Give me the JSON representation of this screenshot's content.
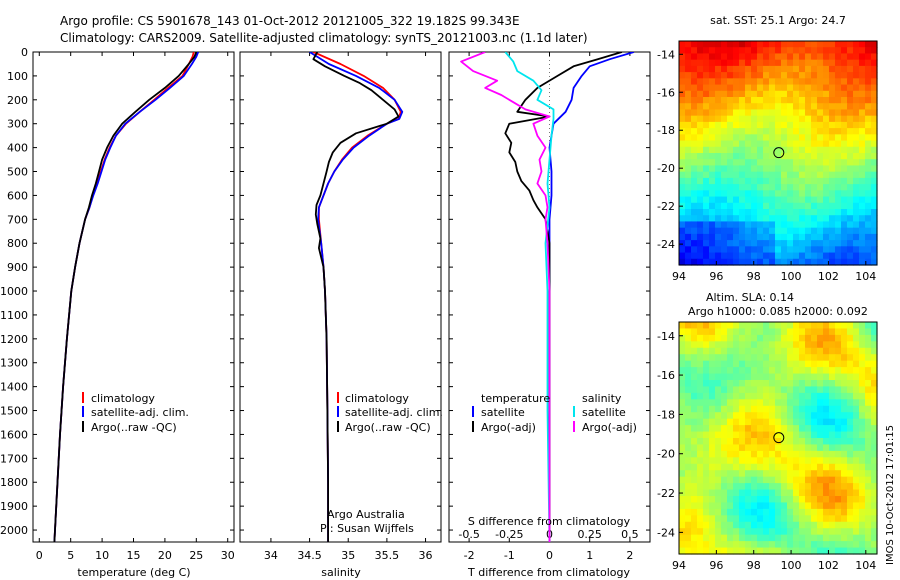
{
  "header": {
    "line1": "Argo profile: CS 5901678_143 01-Oct-2012 20121005_322 19.182S 99.343E",
    "line2": "Climatology: CARS2009. Satellite-adjusted climatology: synTS_20121003.nc (1.1d later)"
  },
  "colors": {
    "climatology": "#ff0000",
    "satellite": "#0000ff",
    "argo": "#000000",
    "s_satellite": "#00e5ee",
    "s_argo": "#ff00ff"
  },
  "depth_axis": {
    "ylim": [
      0,
      2050
    ],
    "ticks": [
      "0",
      "100",
      "200",
      "300",
      "400",
      "500",
      "600",
      "700",
      "800",
      "900",
      "1000",
      "1100",
      "1200",
      "1300",
      "1400",
      "1500",
      "1600",
      "1700",
      "1800",
      "1900",
      "2000"
    ]
  },
  "chart_data": [
    {
      "id": "temperature",
      "type": "line",
      "xlabel": "temperature (deg C)",
      "xlim": [
        -1,
        31
      ],
      "xticks": [
        "0",
        "5",
        "10",
        "15",
        "20",
        "25",
        "30"
      ],
      "xtick_values": [
        0,
        5,
        10,
        15,
        20,
        25,
        30
      ],
      "legend": [
        "climatology",
        "satellite-adj. clim.",
        "Argo(..raw -QC)"
      ],
      "series": [
        {
          "name": "climatology",
          "color": "#ff0000",
          "depth": [
            0,
            20,
            50,
            100,
            150,
            200,
            250,
            300,
            350,
            400,
            450,
            500,
            550,
            600,
            650,
            700,
            800,
            900,
            1000,
            1200,
            1400,
            1600,
            1800,
            2000,
            2050
          ],
          "values": [
            24.6,
            24.4,
            23.8,
            22.8,
            20.5,
            18.3,
            16.0,
            13.8,
            12.2,
            11.2,
            10.4,
            9.8,
            9.2,
            8.5,
            8.0,
            7.3,
            6.4,
            5.7,
            5.1,
            4.4,
            3.8,
            3.3,
            2.9,
            2.5,
            2.4
          ]
        },
        {
          "name": "satellite-adj. clim.",
          "color": "#0000ff",
          "depth": [
            0,
            20,
            50,
            100,
            150,
            200,
            250,
            300,
            350,
            400,
            450,
            500,
            550,
            600,
            650,
            700,
            800,
            900,
            1000,
            1200,
            1400,
            1600,
            1800,
            2000,
            2050
          ],
          "values": [
            25.3,
            25.0,
            24.3,
            23.0,
            20.8,
            18.5,
            16.0,
            13.7,
            12.2,
            11.3,
            10.5,
            9.9,
            9.3,
            8.6,
            8.0,
            7.3,
            6.4,
            5.7,
            5.1,
            4.4,
            3.8,
            3.3,
            2.9,
            2.5,
            2.4
          ]
        },
        {
          "name": "Argo(..raw -QC)",
          "color": "#000000",
          "depth": [
            0,
            20,
            50,
            100,
            150,
            200,
            250,
            300,
            350,
            400,
            450,
            500,
            550,
            600,
            650,
            700,
            800,
            900,
            1000,
            1200,
            1400,
            1600,
            1800,
            2000,
            2050
          ],
          "values": [
            25.0,
            24.7,
            23.8,
            22.2,
            20.0,
            17.5,
            15.3,
            13.2,
            11.8,
            10.8,
            10.0,
            9.5,
            9.0,
            8.4,
            7.9,
            7.3,
            6.4,
            5.7,
            5.1,
            4.4,
            3.8,
            3.3,
            2.9,
            2.5,
            2.4
          ]
        }
      ]
    },
    {
      "id": "salinity",
      "type": "line",
      "xlabel": "salinity",
      "xlim": [
        33.6,
        36.2
      ],
      "xticks": [
        "34",
        "34.5",
        "35",
        "35.5",
        "36"
      ],
      "xtick_values": [
        34,
        34.5,
        35,
        35.5,
        36
      ],
      "legend": [
        "climatology",
        "satellite-adj. clim.",
        "Argo(..raw -QC)"
      ],
      "annotation": [
        "Argo Australia",
        "PI: Susan Wijffels"
      ],
      "series": [
        {
          "name": "climatology",
          "color": "#ff0000",
          "depth": [
            0,
            50,
            100,
            150,
            200,
            250,
            280,
            300,
            350,
            400,
            450,
            500,
            550,
            600,
            650,
            700,
            800,
            900,
            1000,
            1200,
            1500,
            1800,
            2050
          ],
          "values": [
            34.55,
            34.9,
            35.2,
            35.45,
            35.6,
            35.68,
            35.65,
            35.5,
            35.25,
            35.05,
            34.92,
            34.82,
            34.74,
            34.68,
            34.62,
            34.62,
            34.65,
            34.68,
            34.7,
            34.72,
            34.73,
            34.74,
            34.74
          ]
        },
        {
          "name": "satellite-adj. clim.",
          "color": "#0000ff",
          "depth": [
            0,
            50,
            100,
            150,
            200,
            250,
            280,
            300,
            350,
            400,
            450,
            500,
            550,
            600,
            650,
            700,
            800,
            900,
            1000,
            1200,
            1500,
            1800,
            2050
          ],
          "values": [
            34.5,
            34.75,
            35.1,
            35.4,
            35.6,
            35.7,
            35.66,
            35.5,
            35.27,
            35.07,
            34.93,
            34.82,
            34.74,
            34.68,
            34.62,
            34.61,
            34.65,
            34.68,
            34.7,
            34.72,
            34.73,
            34.74,
            34.74
          ]
        },
        {
          "name": "Argo(..raw -QC)",
          "color": "#000000",
          "depth": [
            0,
            30,
            60,
            100,
            130,
            160,
            200,
            240,
            270,
            300,
            340,
            380,
            420,
            460,
            500,
            550,
            600,
            640,
            680,
            720,
            780,
            820,
            900,
            1000,
            1200,
            1500,
            1800,
            2050
          ],
          "values": [
            34.6,
            34.55,
            34.7,
            34.95,
            35.15,
            35.3,
            35.45,
            35.6,
            35.65,
            35.5,
            35.1,
            34.9,
            34.8,
            34.75,
            34.72,
            34.68,
            34.64,
            34.59,
            34.58,
            34.6,
            34.64,
            34.62,
            34.68,
            34.7,
            34.72,
            34.73,
            34.74,
            34.74
          ]
        }
      ]
    },
    {
      "id": "difference",
      "type": "line",
      "xlabel": "T difference from climatology",
      "xlabel_top": "S difference from climatology",
      "xlim": [
        -2.5,
        2.5
      ],
      "xticks": [
        "-2",
        "-1",
        "0",
        "1",
        "2"
      ],
      "xtick_values": [
        -2,
        -1,
        0,
        1,
        2
      ],
      "sticks": [
        "-0.5",
        "-0.25",
        "0",
        "0.25",
        "0.5"
      ],
      "stick_values": [
        -2,
        -1,
        0,
        1,
        2
      ],
      "legend_temp_title": "temperature",
      "legend_sal_title": "salinity",
      "legend_temp": [
        "satellite",
        "Argo(-adj)"
      ],
      "legend_sal": [
        "satellite",
        "Argo(-adj)"
      ],
      "series": [
        {
          "name": "T satellite",
          "color": "#0000ff",
          "depth": [
            0,
            30,
            60,
            100,
            150,
            200,
            250,
            300,
            400,
            500,
            600,
            700,
            800,
            1000,
            1500,
            2050
          ],
          "values": [
            2.1,
            1.5,
            1.0,
            0.8,
            0.6,
            0.55,
            0.4,
            0.1,
            0.0,
            0.05,
            0.05,
            0.0,
            0.0,
            0.0,
            0.0,
            0.0
          ]
        },
        {
          "name": "T Argo(-adj)",
          "color": "#000000",
          "depth": [
            0,
            30,
            60,
            100,
            150,
            200,
            250,
            270,
            300,
            340,
            380,
            420,
            460,
            500,
            540,
            580,
            620,
            650,
            700,
            800,
            1000,
            1500,
            2050
          ],
          "values": [
            1.8,
            1.2,
            0.6,
            0.2,
            -0.3,
            -0.6,
            -0.8,
            0.0,
            -1.0,
            -1.1,
            -0.95,
            -1.0,
            -0.85,
            -0.8,
            -0.7,
            -0.5,
            -0.4,
            -0.3,
            -0.1,
            0.0,
            0.0,
            0.0,
            0.0
          ]
        },
        {
          "name": "S satellite",
          "color": "#00e5ee",
          "depth": [
            0,
            40,
            80,
            120,
            160,
            200,
            240,
            280,
            350,
            450,
            550,
            650,
            800,
            1000,
            1500,
            2050
          ],
          "values": [
            -1.1,
            -0.9,
            -0.8,
            -0.4,
            -0.2,
            -0.3,
            0.1,
            0.1,
            0.05,
            0.0,
            -0.05,
            0.0,
            -0.1,
            -0.05,
            -0.05,
            0.0
          ]
        },
        {
          "name": "S Argo(-adj)",
          "color": "#ff00ff",
          "depth": [
            0,
            40,
            80,
            120,
            150,
            180,
            210,
            240,
            270,
            300,
            350,
            400,
            450,
            500,
            550,
            600,
            650,
            700,
            800,
            1000,
            1500,
            2050
          ],
          "values": [
            -1.6,
            -2.2,
            -1.9,
            -1.3,
            -1.6,
            -1.2,
            -0.9,
            -0.6,
            0.0,
            -0.4,
            -0.3,
            -0.1,
            -0.25,
            -0.2,
            -0.3,
            -0.1,
            -0.05,
            -0.1,
            -0.05,
            0.0,
            0.0,
            0.0
          ]
        }
      ]
    }
  ],
  "maps": [
    {
      "id": "sst-map",
      "title": "sat. SST: 25.1 Argo: 24.7",
      "xticks": [
        "94",
        "96",
        "98",
        "100",
        "102",
        "104"
      ],
      "xtick_values": [
        94,
        96,
        98,
        100,
        102,
        104
      ],
      "yticks": [
        "-14",
        "-16",
        "-18",
        "-20",
        "-22",
        "-24"
      ],
      "ytick_values": [
        -14,
        -16,
        -18,
        -20,
        -22,
        -24
      ],
      "xlim": [
        94,
        104.6
      ],
      "ylim": [
        -25.1,
        -13.3
      ],
      "marker": {
        "lon": 99.343,
        "lat": -19.182
      }
    },
    {
      "id": "sla-map",
      "title1": "Altim. SLA: 0.14",
      "title2": "Argo h1000: 0.085 h2000: 0.092",
      "xticks": [
        "94",
        "96",
        "98",
        "100",
        "102",
        "104"
      ],
      "xtick_values": [
        94,
        96,
        98,
        100,
        102,
        104
      ],
      "yticks": [
        "-14",
        "-16",
        "-18",
        "-20",
        "-22",
        "-24"
      ],
      "ytick_values": [
        -14,
        -16,
        -18,
        -20,
        -22,
        -24
      ],
      "xlim": [
        94,
        104.6
      ],
      "ylim": [
        -25.1,
        -13.3
      ],
      "marker": {
        "lon": 99.343,
        "lat": -19.182
      }
    }
  ],
  "footer": {
    "stamp": "IMOS 10-Oct-2012 17:01:15"
  }
}
